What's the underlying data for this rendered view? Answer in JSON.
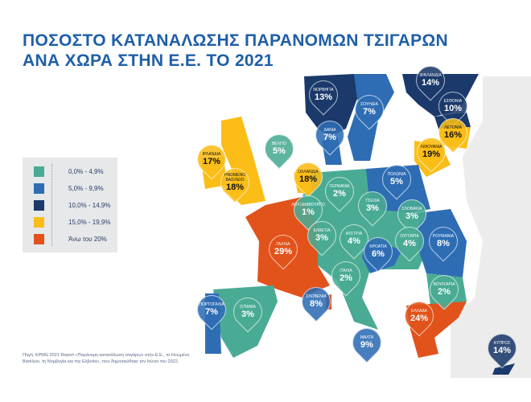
{
  "title": {
    "line1": "ΠΟΣΟΣΤΟ ΚΑΤΑΝΑΛΩΣΗΣ ΠΑΡΑΝΟΜΩΝ ΤΣΙΓΑΡΩΝ",
    "line2": "ΑΝΑ ΧΩΡΑ ΣΤΗΝ Ε.Ε. ΤΟ 2021"
  },
  "colors": {
    "teal": "#4aab94",
    "blue": "#2e6db4",
    "navy": "#1b3a6b",
    "yellow": "#fbbd16",
    "orange": "#e2531c",
    "title": "#1f5fa8"
  },
  "legend": [
    {
      "label": "0,0% - 4,9%",
      "color": "#4aab94"
    },
    {
      "label": "5,0% - 9,9%",
      "color": "#2e6db4"
    },
    {
      "label": "10,0% - 14,9%",
      "color": "#1b3a6b"
    },
    {
      "label": "15,0% - 19,9%",
      "color": "#fbbd16"
    },
    {
      "label": "Άνω του 20%",
      "color": "#e2531c"
    }
  ],
  "countries": [
    {
      "name": "ΙΡΛΑΝΔΙΑ",
      "value": "17%",
      "color": "#fbbd16"
    },
    {
      "name": "ΗΝΩΜΕΝΟ ΒΑΣΙΛΕΙΟ",
      "value": "18%",
      "color": "#fbbd16"
    },
    {
      "name": "ΒΕΛΓΙΟ",
      "value": "5%",
      "color": "#4aab94"
    },
    {
      "name": "ΟΛΛΑΝΔΙΑ",
      "value": "18%",
      "color": "#fbbd16"
    },
    {
      "name": "ΝΟΡΒΗΓΙΑ",
      "value": "13%",
      "color": "#1b3a6b"
    },
    {
      "name": "ΣΟΥΗΔΙΑ",
      "value": "7%",
      "color": "#2e6db4"
    },
    {
      "name": "ΔΑΝΙΑ",
      "value": "7%",
      "color": "#2e6db4"
    },
    {
      "name": "ΦΙΝΛΑΝΔΙΑ",
      "value": "14%",
      "color": "#1b3a6b"
    },
    {
      "name": "ΕΣΘΟΝΙΑ",
      "value": "10%",
      "color": "#1b3a6b"
    },
    {
      "name": "ΛΕΤΟΝΙΑ",
      "value": "16%",
      "color": "#fbbd16"
    },
    {
      "name": "ΛΙΘΟΥΑΝΙΑ",
      "value": "19%",
      "color": "#fbbd16"
    },
    {
      "name": "ΠΟΛΩΝΙΑ",
      "value": "5%",
      "color": "#2e6db4"
    },
    {
      "name": "ΓΕΡΜΑΝΙΑ",
      "value": "2%",
      "color": "#4aab94"
    },
    {
      "name": "ΤΣΕΧΙΑ",
      "value": "3%",
      "color": "#4aab94"
    },
    {
      "name": "ΣΛΟΒΑΚΙΑ",
      "value": "3%",
      "color": "#4aab94"
    },
    {
      "name": "ΛΟΥΞΕΜΒΟΥΡΓΟ",
      "value": "1%",
      "color": "#4aab94"
    },
    {
      "name": "ΓΑΛΛΙΑ",
      "value": "29%",
      "color": "#e2531c"
    },
    {
      "name": "ΕΛΒΕΤΙΑ",
      "value": "3%",
      "color": "#4aab94"
    },
    {
      "name": "ΑΥΣΤΡΙΑ",
      "value": "4%",
      "color": "#4aab94"
    },
    {
      "name": "ΚΡΟΑΤΙΑ",
      "value": "6%",
      "color": "#2e6db4"
    },
    {
      "name": "ΟΥΓΓΑΡΙΑ",
      "value": "4%",
      "color": "#4aab94"
    },
    {
      "name": "ΡΟΥΜΑΝΙΑ",
      "value": "8%",
      "color": "#2e6db4"
    },
    {
      "name": "ΙΤΑΛΙΑ",
      "value": "2%",
      "color": "#4aab94"
    },
    {
      "name": "ΣΛΟΒΕΝΙΑ",
      "value": "8%",
      "color": "#2e6db4"
    },
    {
      "name": "ΒΟΥΛΓΑΡΙΑ",
      "value": "2%",
      "color": "#4aab94"
    },
    {
      "name": "ΕΛΛΑΔΑ",
      "value": "24%",
      "color": "#e2531c"
    },
    {
      "name": "ΠΟΡΤΟΓΑΛΙΑ",
      "value": "7%",
      "color": "#2e6db4"
    },
    {
      "name": "ΙΣΠΑΝΙΑ",
      "value": "3%",
      "color": "#4aab94"
    },
    {
      "name": "ΜΑΛΤΑ",
      "value": "9%",
      "color": "#2e6db4"
    },
    {
      "name": "ΚΥΠΡΟΣ",
      "value": "14%",
      "color": "#1b3a6b"
    }
  ],
  "source": "Πηγή: KPMG 2021 Report «Παράνομη κατανάλωση τσιγάρων στην Ε.Ε., το Ηνωμένο Βασίλειο, τη Νορβηγία και την Ελβετία», που δημοσιεύθηκε τον Ιούνιο του 2022."
}
